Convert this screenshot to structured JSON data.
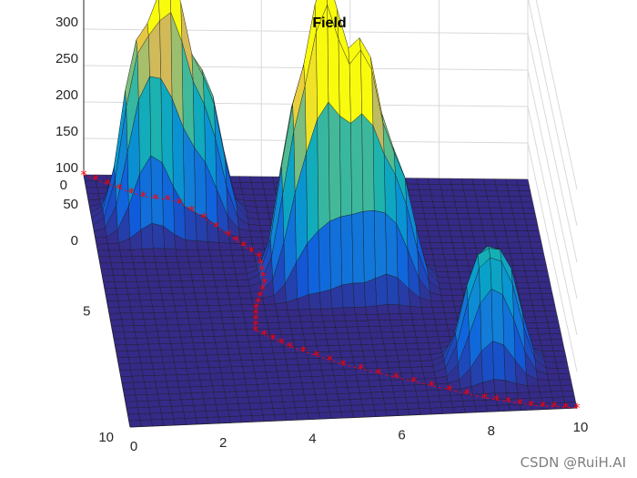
{
  "chart_data": {
    "type": "surface",
    "title": "Field",
    "x_ticks": [
      "0",
      "2",
      "4",
      "6",
      "8",
      "10"
    ],
    "y_ticks": [
      "0",
      "5",
      "10"
    ],
    "z_ticks": [
      "0",
      "50",
      "100",
      "150",
      "200",
      "250",
      "300"
    ],
    "xlim": [
      0,
      10
    ],
    "ylim": [
      0,
      10
    ],
    "zlim": [
      0,
      300
    ],
    "grid": true,
    "colormap": "parula",
    "peaks": [
      {
        "x": 1.3,
        "y": 1.8,
        "height": 260
      },
      {
        "x": 2.3,
        "y": 1.6,
        "height": 200
      },
      {
        "x": 4.6,
        "y": 4.2,
        "height": 260
      },
      {
        "x": 5.4,
        "y": 4.3,
        "height": 230
      },
      {
        "x": 6.3,
        "y": 4.4,
        "height": 180
      },
      {
        "x": 8.3,
        "y": 8.0,
        "height": 160
      }
    ],
    "path": {
      "marker": "*",
      "color": "#ff0000",
      "points": [
        {
          "x": 0.0,
          "y": 0.0
        },
        {
          "x": 1.0,
          "y": 0.7
        },
        {
          "x": 2.0,
          "y": 1.5
        },
        {
          "x": 3.0,
          "y": 2.4
        },
        {
          "x": 3.6,
          "y": 3.3
        },
        {
          "x": 3.6,
          "y": 4.4
        },
        {
          "x": 3.3,
          "y": 5.4
        },
        {
          "x": 3.2,
          "y": 6.3
        },
        {
          "x": 3.9,
          "y": 7.0
        },
        {
          "x": 5.0,
          "y": 7.8
        },
        {
          "x": 6.5,
          "y": 8.6
        },
        {
          "x": 8.0,
          "y": 9.4
        },
        {
          "x": 9.0,
          "y": 9.8
        },
        {
          "x": 10.0,
          "y": 10.0
        }
      ]
    }
  },
  "watermark": "CSDN @RuiH.AI"
}
